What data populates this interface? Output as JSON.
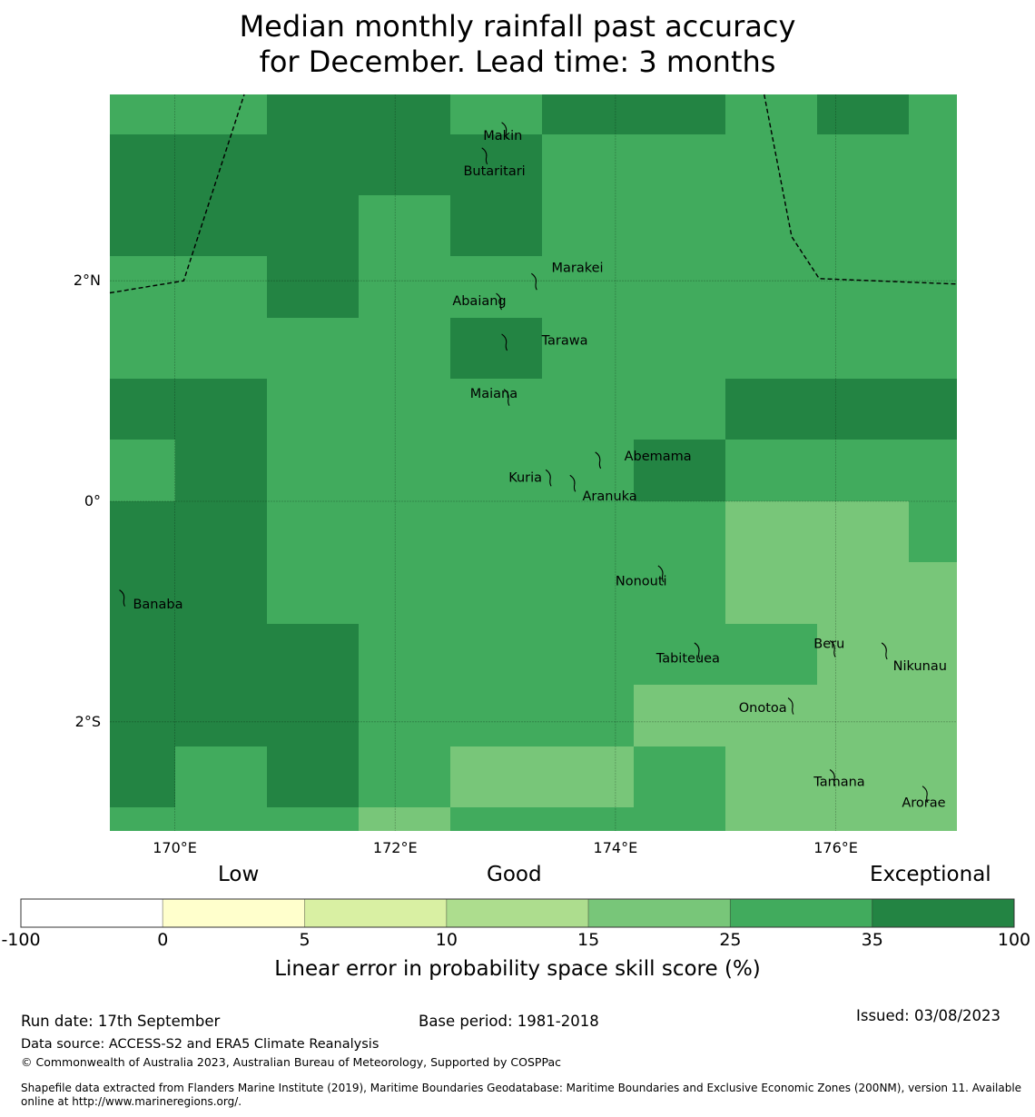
{
  "title": {
    "line1": "Median monthly rainfall past accuracy",
    "line2": "for December. Lead time: 3 months"
  },
  "chart_data": {
    "type": "heatmap",
    "title": "Median monthly rainfall past accuracy for December. Lead time: 3 months",
    "extent": {
      "lon": [
        169.41,
        177.1
      ],
      "lat": [
        -2.99,
        3.69
      ]
    },
    "grid": {
      "lon_edges": [
        169.41,
        170.0,
        170.833,
        171.667,
        172.5,
        173.333,
        174.167,
        175.0,
        175.833,
        176.667,
        177.1
      ],
      "lat_edges": [
        3.69,
        3.33,
        2.778,
        2.222,
        1.667,
        1.111,
        0.556,
        0.0,
        -0.556,
        -1.111,
        -1.667,
        -2.222,
        -2.778,
        -2.99
      ],
      "note": "values are colorbar category indices: 5 = 25-35, 6 = 35-100, 4 = 15-25",
      "values": [
        [
          5,
          5,
          6,
          6,
          5,
          6,
          6,
          5,
          6,
          5
        ],
        [
          6,
          6,
          6,
          6,
          6,
          5,
          5,
          5,
          5,
          5
        ],
        [
          6,
          6,
          6,
          5,
          6,
          5,
          5,
          5,
          5,
          5
        ],
        [
          5,
          5,
          6,
          5,
          5,
          5,
          5,
          5,
          5,
          5
        ],
        [
          5,
          5,
          5,
          5,
          6,
          5,
          5,
          5,
          5,
          5
        ],
        [
          6,
          6,
          5,
          5,
          5,
          5,
          5,
          6,
          6,
          6
        ],
        [
          5,
          6,
          5,
          5,
          5,
          5,
          6,
          5,
          5,
          5
        ],
        [
          6,
          6,
          5,
          5,
          5,
          5,
          5,
          4,
          4,
          5
        ],
        [
          6,
          6,
          5,
          5,
          5,
          5,
          5,
          4,
          4,
          4
        ],
        [
          6,
          6,
          6,
          5,
          5,
          5,
          5,
          5,
          4,
          4
        ],
        [
          6,
          6,
          6,
          5,
          5,
          5,
          4,
          4,
          4,
          4
        ],
        [
          6,
          5,
          6,
          5,
          4,
          4,
          5,
          4,
          4,
          4
        ],
        [
          5,
          5,
          5,
          4,
          5,
          5,
          5,
          4,
          4,
          4
        ]
      ]
    },
    "x_ticks": [
      {
        "value": 170,
        "label": "170°E"
      },
      {
        "value": 172,
        "label": "172°E"
      },
      {
        "value": 174,
        "label": "174°E"
      },
      {
        "value": 176,
        "label": "176°E"
      }
    ],
    "y_ticks": [
      {
        "value": 2,
        "label": "2°N"
      },
      {
        "value": 0,
        "label": "0°"
      },
      {
        "value": -2,
        "label": "2°S"
      }
    ],
    "gridlines": true,
    "eez_boundaries": [
      [
        [
          169.41,
          1.89
        ],
        [
          170.08,
          2.0
        ],
        [
          170.63,
          3.69
        ]
      ],
      [
        [
          175.35,
          3.69
        ],
        [
          175.6,
          2.4
        ],
        [
          175.85,
          2.02
        ],
        [
          177.1,
          1.97
        ]
      ]
    ],
    "islands": [
      {
        "name": "Makin",
        "lon": 173.0,
        "lat": 3.37,
        "label_lon": 172.8,
        "label_lat": 3.32
      },
      {
        "name": "Butaritari",
        "lon": 172.82,
        "lat": 3.14,
        "label_lon": 172.62,
        "label_lat": 3.0
      },
      {
        "name": "Marakei",
        "lon": 173.27,
        "lat": 2.0,
        "label_lon": 173.42,
        "label_lat": 2.12
      },
      {
        "name": "Abaiang",
        "lon": 172.95,
        "lat": 1.82,
        "label_lon": 172.52,
        "label_lat": 1.82
      },
      {
        "name": "Tarawa",
        "lon": 173.0,
        "lat": 1.45,
        "label_lon": 173.33,
        "label_lat": 1.46
      },
      {
        "name": "Maiana",
        "lon": 173.02,
        "lat": 0.95,
        "label_lon": 172.68,
        "label_lat": 0.98
      },
      {
        "name": "Abemama",
        "lon": 173.85,
        "lat": 0.38,
        "label_lon": 174.08,
        "label_lat": 0.41
      },
      {
        "name": "Kuria",
        "lon": 173.4,
        "lat": 0.22,
        "label_lon": 173.03,
        "label_lat": 0.22
      },
      {
        "name": "Aranuka",
        "lon": 173.62,
        "lat": 0.17,
        "label_lon": 173.7,
        "label_lat": 0.05
      },
      {
        "name": "Nonouti",
        "lon": 174.42,
        "lat": -0.65,
        "label_lon": 174.0,
        "label_lat": -0.72
      },
      {
        "name": "Tabiteuea",
        "lon": 174.75,
        "lat": -1.35,
        "label_lon": 174.37,
        "label_lat": -1.42
      },
      {
        "name": "Beru",
        "lon": 175.98,
        "lat": -1.33,
        "label_lon": 175.8,
        "label_lat": -1.29
      },
      {
        "name": "Nikunau",
        "lon": 176.45,
        "lat": -1.35,
        "label_lon": 176.52,
        "label_lat": -1.49
      },
      {
        "name": "Onotoa",
        "lon": 175.6,
        "lat": -1.85,
        "label_lon": 175.12,
        "label_lat": -1.87
      },
      {
        "name": "Banaba",
        "lon": 169.53,
        "lat": -0.87,
        "label_lon": 169.62,
        "label_lat": -0.93
      },
      {
        "name": "Tamana",
        "lon": 175.98,
        "lat": -2.5,
        "label_lon": 175.8,
        "label_lat": -2.54
      },
      {
        "name": "Arorae",
        "lon": 176.82,
        "lat": -2.65,
        "label_lon": 176.6,
        "label_lat": -2.73
      }
    ]
  },
  "colorbar": {
    "categories": [
      {
        "label": "Low",
        "at": "0-5"
      },
      {
        "label": "Good",
        "at": "10-15"
      },
      {
        "label": "Exceptional",
        "at": "35-100"
      }
    ],
    "bins": [
      {
        "from": "-100",
        "to": "0",
        "color": "#ffffff"
      },
      {
        "from": "0",
        "to": "5",
        "color": "#ffffcc"
      },
      {
        "from": "5",
        "to": "10",
        "color": "#d9f0a3"
      },
      {
        "from": "10",
        "to": "15",
        "color": "#addd8e"
      },
      {
        "from": "15",
        "to": "25",
        "color": "#78c679"
      },
      {
        "from": "25",
        "to": "35",
        "color": "#41ab5d"
      },
      {
        "from": "35",
        "to": "100",
        "color": "#238443"
      }
    ],
    "tick_labels": [
      "-100",
      "0",
      "5",
      "10",
      "15",
      "25",
      "35",
      "100"
    ],
    "title": "Linear error in probability space skill score (%)"
  },
  "footer": {
    "run_date": "Run date: 17th September",
    "base_period": "Base period: 1981-2018",
    "issued": "Issued: 03/08/2023",
    "data_source": "Data source: ACCESS-S2 and ERA5 Climate Reanalysis",
    "copyright": "© Commonwealth of Australia 2023, Australian Bureau of Meteorology, Supported by COSPPac",
    "shapefile_line1": "Shapefile data extracted from Flanders Marine Institute (2019), Maritime Boundaries Geodatabase: Maritime Boundaries and Exclusive Economic Zones (200NM), version 11. Available",
    "shapefile_line2": "online at http://www.marineregions.org/."
  }
}
